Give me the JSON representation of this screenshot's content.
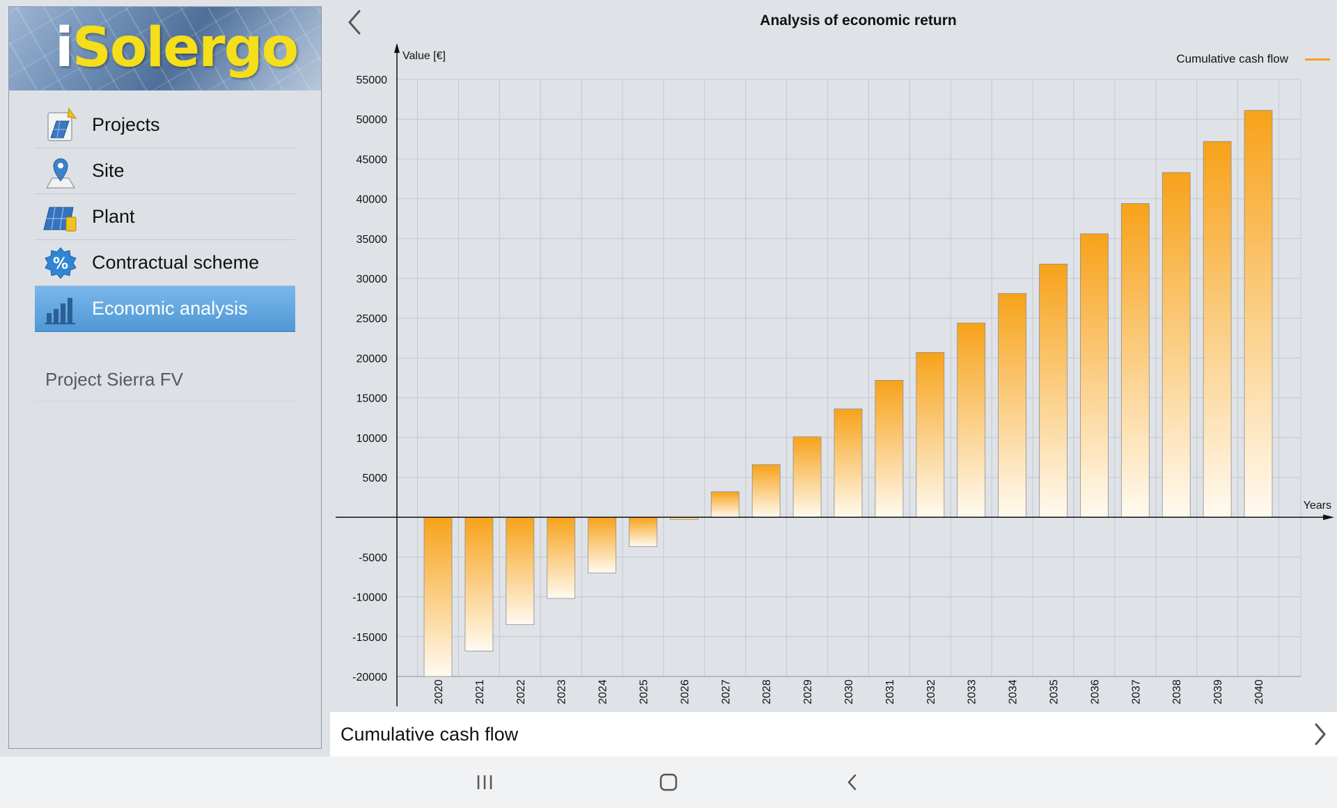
{
  "app": {
    "logo_text": "iSolergo"
  },
  "sidebar": {
    "items": [
      {
        "label": "Projects",
        "icon": "projects-icon",
        "active": false
      },
      {
        "label": "Site",
        "icon": "location-pin-icon",
        "active": false
      },
      {
        "label": "Plant",
        "icon": "solar-panel-icon",
        "active": false
      },
      {
        "label": "Contractual scheme",
        "icon": "percent-badge-icon",
        "active": false
      },
      {
        "label": "Economic analysis",
        "icon": "bar-chart-icon",
        "active": true
      }
    ],
    "project_name": "Project Sierra FV"
  },
  "header": {
    "back_icon": "chevron-left-icon"
  },
  "chart_data": {
    "type": "bar",
    "title": "Analysis of economic return",
    "ylabel": "Value [€]",
    "xlabel": "Years",
    "categories": [
      "2020",
      "2021",
      "2022",
      "2023",
      "2024",
      "2025",
      "2026",
      "2027",
      "2028",
      "2029",
      "2030",
      "2031",
      "2032",
      "2033",
      "2034",
      "2035",
      "2036",
      "2037",
      "2038",
      "2039",
      "2040"
    ],
    "series": [
      {
        "name": "Cumulative cash flow",
        "color": "#f7a21a",
        "values": [
          -20000,
          -16800,
          -13500,
          -10200,
          -7000,
          -3700,
          -300,
          3200,
          6600,
          10100,
          13600,
          17200,
          20700,
          24400,
          28100,
          31800,
          35600,
          39400,
          43300,
          47200,
          51100
        ]
      }
    ],
    "ylim": [
      -20000,
      55000
    ],
    "yticks": [
      55000,
      50000,
      45000,
      40000,
      35000,
      30000,
      25000,
      20000,
      15000,
      10000,
      5000,
      -5000,
      -10000,
      -15000,
      -20000
    ],
    "grid": true,
    "legend_position": "top-right"
  },
  "bottom_selector": {
    "label": "Cumulative cash flow",
    "icon": "chevron-right-icon"
  },
  "system_nav": {
    "recents_icon": "recents-icon",
    "home_icon": "home-icon",
    "back_icon": "back-icon"
  }
}
